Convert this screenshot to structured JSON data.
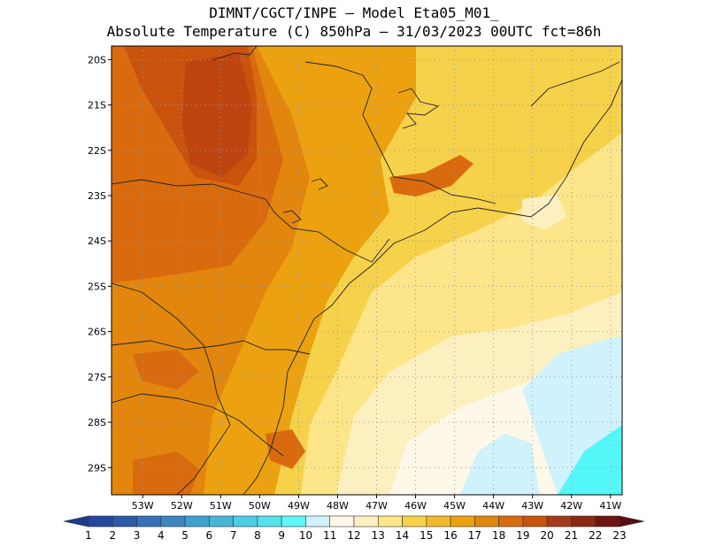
{
  "header": {
    "line1": "DIMNT/CGCT/INPE –  Model Eta05_M01_",
    "line2": "Absolute Temperature (C) 850hPa –  31/03/2023 00UTC fct=86h"
  },
  "map": {
    "lat_labels": [
      "20S",
      "21S",
      "22S",
      "23S",
      "24S",
      "25S",
      "26S",
      "27S",
      "28S",
      "29S"
    ],
    "lon_labels": [
      "53W",
      "52W",
      "51W",
      "50W",
      "49W",
      "48W",
      "47W",
      "46W",
      "45W",
      "44W",
      "43W",
      "42W",
      "41W"
    ],
    "lat_values": [
      -20,
      -21,
      -22,
      -23,
      -24,
      -25,
      -26,
      -27,
      -28,
      -29
    ],
    "lon_values": [
      -53,
      -52,
      -51,
      -50,
      -49,
      -48,
      -47,
      -46,
      -45,
      -44,
      -43,
      -42,
      -41
    ],
    "lat_range": [
      -29.6,
      -19.7
    ],
    "lon_range": [
      -53.8,
      -40.7
    ],
    "grid": "dotted",
    "palette": {
      "11": "#fef8e8",
      "12": "#fdf0c0",
      "13": "#fde58a",
      "14": "#f6d14a",
      "15": "#f1b92e",
      "16": "#eca210",
      "17": "#e2860e",
      "18": "#d96b0e",
      "19": "#c9530c",
      "20": "#bf4510",
      "cold": "#cff2fc",
      "coldest": "#54f7f7"
    }
  },
  "colorbar": {
    "labels": [
      "1",
      "2",
      "3",
      "4",
      "5",
      "6",
      "7",
      "8",
      "9",
      "10",
      "11",
      "12",
      "13",
      "14",
      "15",
      "16",
      "17",
      "18",
      "19",
      "20",
      "21",
      "22",
      "23"
    ],
    "colors": [
      "#1d3a8f",
      "#25489e",
      "#2c5ba9",
      "#3471b7",
      "#3b86c2",
      "#3fa0cd",
      "#46b6d8",
      "#4ccde3",
      "#55e2ee",
      "#5ef6f6",
      "#d2f2fc",
      "#fef8e8",
      "#fdf0c0",
      "#fde58a",
      "#f6d14a",
      "#f1b92e",
      "#eca210",
      "#e2860e",
      "#d96b0e",
      "#c9530c",
      "#a53b18",
      "#8a2a12",
      "#6f1410",
      "#5a0a10"
    ]
  }
}
